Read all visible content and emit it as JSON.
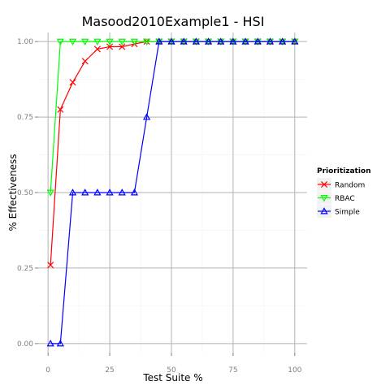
{
  "chart_data": {
    "type": "line",
    "title": "Masood2010Example1 - HSI",
    "xlabel": "Test Suite %",
    "ylabel": "% Effectiveness",
    "xlim": [
      -4,
      105
    ],
    "ylim": [
      -0.03,
      1.03
    ],
    "xticks": [
      0,
      25,
      50,
      75,
      100
    ],
    "xtick_labels": [
      "0",
      "25",
      "50",
      "75",
      "100"
    ],
    "yticks": [
      0,
      0.25,
      0.5,
      0.75,
      1
    ],
    "ytick_labels": [
      "0.00",
      "0.25",
      "0.50",
      "0.75",
      "1.00"
    ],
    "x_minor_grid": [
      12.5,
      37.5,
      62.5,
      87.5
    ],
    "y_minor_grid": [
      0.125,
      0.375,
      0.625,
      0.875
    ],
    "grid": true,
    "legend_position": "right",
    "legend_title": "Prioritization",
    "x": [
      1,
      5,
      10,
      15,
      20,
      25,
      30,
      35,
      40,
      45,
      50,
      55,
      60,
      65,
      70,
      75,
      80,
      85,
      90,
      95,
      100
    ],
    "series": [
      {
        "name": "Random",
        "color": "#ff0000",
        "marker": "x",
        "values": [
          0.26,
          0.775,
          0.865,
          0.935,
          0.975,
          0.983,
          0.983,
          0.992,
          1,
          1,
          1,
          1,
          1,
          1,
          1,
          1,
          1,
          1,
          1,
          1,
          1
        ]
      },
      {
        "name": "RBAC",
        "color": "#00ff00",
        "marker": "triangle-down",
        "values": [
          0.5,
          1,
          1,
          1,
          1,
          1,
          1,
          1,
          1,
          1,
          1,
          1,
          1,
          1,
          1,
          1,
          1,
          1,
          1,
          1,
          1
        ]
      },
      {
        "name": "Simple",
        "color": "#0000ff",
        "marker": "triangle-up",
        "values": [
          0,
          0,
          0.5,
          0.5,
          0.5,
          0.5,
          0.5,
          0.5,
          0.75,
          1,
          1,
          1,
          1,
          1,
          1,
          1,
          1,
          1,
          1,
          1,
          1
        ]
      }
    ]
  }
}
